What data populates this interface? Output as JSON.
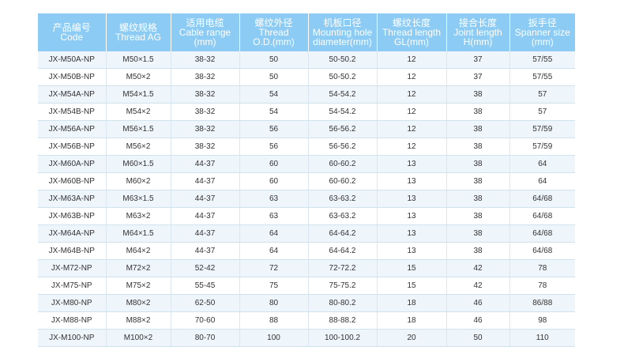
{
  "headers": [
    {
      "zh": "产品编号",
      "en": "Code"
    },
    {
      "zh": "螺纹规格",
      "en": "Thread AG"
    },
    {
      "zh": "适用电缆",
      "en": "Cable range",
      "en2": "(mm)"
    },
    {
      "zh": "螺纹外径",
      "en": "Thread",
      "en2": "O.D.(mm)"
    },
    {
      "zh": "机板口径",
      "en": "Mounting hole",
      "en2": "diameter(mm)"
    },
    {
      "zh": "螺纹长度",
      "en": "Thread length",
      "en2": "GL(mm)"
    },
    {
      "zh": "接合长度",
      "en": "Joint length",
      "en2": "H(mm)"
    },
    {
      "zh": "扳手径",
      "en": "Spanner size",
      "en2": "(mm)"
    }
  ],
  "rows": [
    [
      "JX-M50A-NP",
      "M50×1.5",
      "38-32",
      "50",
      "50-50.2",
      "12",
      "37",
      "57/55"
    ],
    [
      "JX-M50B-NP",
      "M50×2",
      "38-32",
      "50",
      "50-50.2",
      "12",
      "37",
      "57/55"
    ],
    [
      "JX-M54A-NP",
      "M54×1.5",
      "38-32",
      "54",
      "54-54.2",
      "12",
      "38",
      "57"
    ],
    [
      "JX-M54B-NP",
      "M54×2",
      "38-32",
      "54",
      "54-54.2",
      "12",
      "38",
      "57"
    ],
    [
      "JX-M56A-NP",
      "M56×1.5",
      "38-32",
      "56",
      "56-56.2",
      "12",
      "38",
      "57/59"
    ],
    [
      "JX-M56B-NP",
      "M56×2",
      "38-32",
      "56",
      "56-56.2",
      "12",
      "38",
      "57/59"
    ],
    [
      "JX-M60A-NP",
      "M60×1.5",
      "44-37",
      "60",
      "60-60.2",
      "13",
      "38",
      "64"
    ],
    [
      "JX-M60B-NP",
      "M60×2",
      "44-37",
      "60",
      "60-60.2",
      "13",
      "38",
      "64"
    ],
    [
      "JX-M63A-NP",
      "M63×1.5",
      "44-37",
      "63",
      "63-63.2",
      "13",
      "38",
      "64/68"
    ],
    [
      "JX-M63B-NP",
      "M63×2",
      "44-37",
      "63",
      "63-63.2",
      "13",
      "38",
      "64/68"
    ],
    [
      "JX-M64A-NP",
      "M64×1.5",
      "44-37",
      "64",
      "64-64.2",
      "13",
      "38",
      "64/68"
    ],
    [
      "JX-M64B-NP",
      "M64×2",
      "44-37",
      "64",
      "64-64.2",
      "13",
      "38",
      "64/68"
    ],
    [
      "JX-M72-NP",
      "M72×2",
      "52-42",
      "72",
      "72-72.2",
      "15",
      "42",
      "78"
    ],
    [
      "JX-M75-NP",
      "M75×2",
      "55-45",
      "75",
      "75-75.2",
      "15",
      "42",
      "78"
    ],
    [
      "JX-M80-NP",
      "M80×2",
      "62-50",
      "80",
      "80-80.2",
      "18",
      "46",
      "86/88"
    ],
    [
      "JX-M88-NP",
      "M88×2",
      "70-60",
      "88",
      "88-88.2",
      "18",
      "46",
      "98"
    ],
    [
      "JX-M100-NP",
      "M100×2",
      "80-70",
      "100",
      "100-100.2",
      "20",
      "50",
      "110"
    ]
  ],
  "colors": {
    "header_bg": "#8ccbf3",
    "stripe_bg": "#eef5fb"
  }
}
